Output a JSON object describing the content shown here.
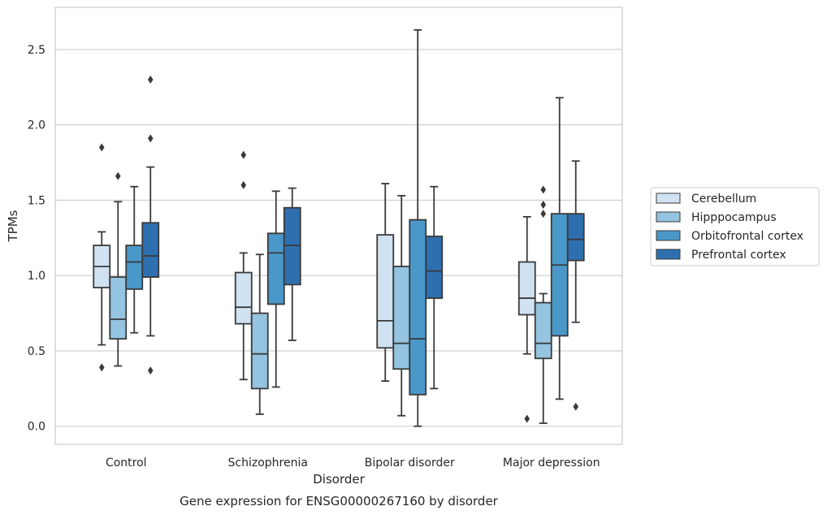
{
  "chart_data": {
    "type": "box",
    "caption": "Gene expression for ENSG00000267160 by disorder",
    "xlabel": "Disorder",
    "ylabel": "TPMs",
    "ylim": [
      -0.12,
      2.78
    ],
    "yticks": [
      0.0,
      0.5,
      1.0,
      1.5,
      2.0,
      2.5
    ],
    "ytick_labels": [
      "0.0",
      "0.5",
      "1.0",
      "1.5",
      "2.0",
      "2.5"
    ],
    "grid": "horizontal",
    "legend_position": "right",
    "categories": [
      "Control",
      "Schizophrenia",
      "Bipolar disorder",
      "Major depression"
    ],
    "series": [
      {
        "name": "Cerebellum",
        "color": "#d0e1f2",
        "boxes": [
          {
            "whisker_low": 0.54,
            "q1": 0.92,
            "median": 1.06,
            "q3": 1.2,
            "whisker_high": 1.29,
            "outliers": [
              0.39,
              1.85
            ]
          },
          {
            "whisker_low": 0.31,
            "q1": 0.68,
            "median": 0.79,
            "q3": 1.02,
            "whisker_high": 1.15,
            "outliers": [
              1.6,
              1.8
            ]
          },
          {
            "whisker_low": 0.3,
            "q1": 0.52,
            "median": 0.7,
            "q3": 1.27,
            "whisker_high": 1.61,
            "outliers": []
          },
          {
            "whisker_low": 0.48,
            "q1": 0.74,
            "median": 0.85,
            "q3": 1.09,
            "whisker_high": 1.39,
            "outliers": [
              0.05
            ]
          }
        ]
      },
      {
        "name": "Hipppocampus",
        "color": "#94c4df",
        "boxes": [
          {
            "whisker_low": 0.4,
            "q1": 0.58,
            "median": 0.71,
            "q3": 0.99,
            "whisker_high": 1.49,
            "outliers": [
              1.66
            ]
          },
          {
            "whisker_low": 0.08,
            "q1": 0.25,
            "median": 0.48,
            "q3": 0.75,
            "whisker_high": 1.14,
            "outliers": []
          },
          {
            "whisker_low": 0.07,
            "q1": 0.38,
            "median": 0.55,
            "q3": 1.06,
            "whisker_high": 1.53,
            "outliers": []
          },
          {
            "whisker_low": 0.02,
            "q1": 0.45,
            "median": 0.55,
            "q3": 0.82,
            "whisker_high": 0.88,
            "outliers": [
              1.41,
              1.47,
              1.57
            ]
          }
        ]
      },
      {
        "name": "Orbitofrontal cortex",
        "color": "#4a98c9",
        "boxes": [
          {
            "whisker_low": 0.62,
            "q1": 0.91,
            "median": 1.09,
            "q3": 1.2,
            "whisker_high": 1.59,
            "outliers": []
          },
          {
            "whisker_low": 0.26,
            "q1": 0.81,
            "median": 1.15,
            "q3": 1.28,
            "whisker_high": 1.56,
            "outliers": []
          },
          {
            "whisker_low": 0.0,
            "q1": 0.21,
            "median": 0.58,
            "q3": 1.37,
            "whisker_high": 2.63,
            "outliers": []
          },
          {
            "whisker_low": 0.18,
            "q1": 0.6,
            "median": 1.07,
            "q3": 1.41,
            "whisker_high": 2.18,
            "outliers": []
          }
        ]
      },
      {
        "name": "Prefrontal cortex",
        "color": "#2e6fb0",
        "boxes": [
          {
            "whisker_low": 0.6,
            "q1": 0.99,
            "median": 1.13,
            "q3": 1.35,
            "whisker_high": 1.72,
            "outliers": [
              0.37,
              1.91,
              2.3
            ]
          },
          {
            "whisker_low": 0.57,
            "q1": 0.94,
            "median": 1.2,
            "q3": 1.45,
            "whisker_high": 1.58,
            "outliers": []
          },
          {
            "whisker_low": 0.25,
            "q1": 0.85,
            "median": 1.03,
            "q3": 1.26,
            "whisker_high": 1.59,
            "outliers": []
          },
          {
            "whisker_low": 0.69,
            "q1": 1.1,
            "median": 1.24,
            "q3": 1.41,
            "whisker_high": 1.76,
            "outliers": [
              0.13
            ]
          }
        ]
      }
    ]
  }
}
